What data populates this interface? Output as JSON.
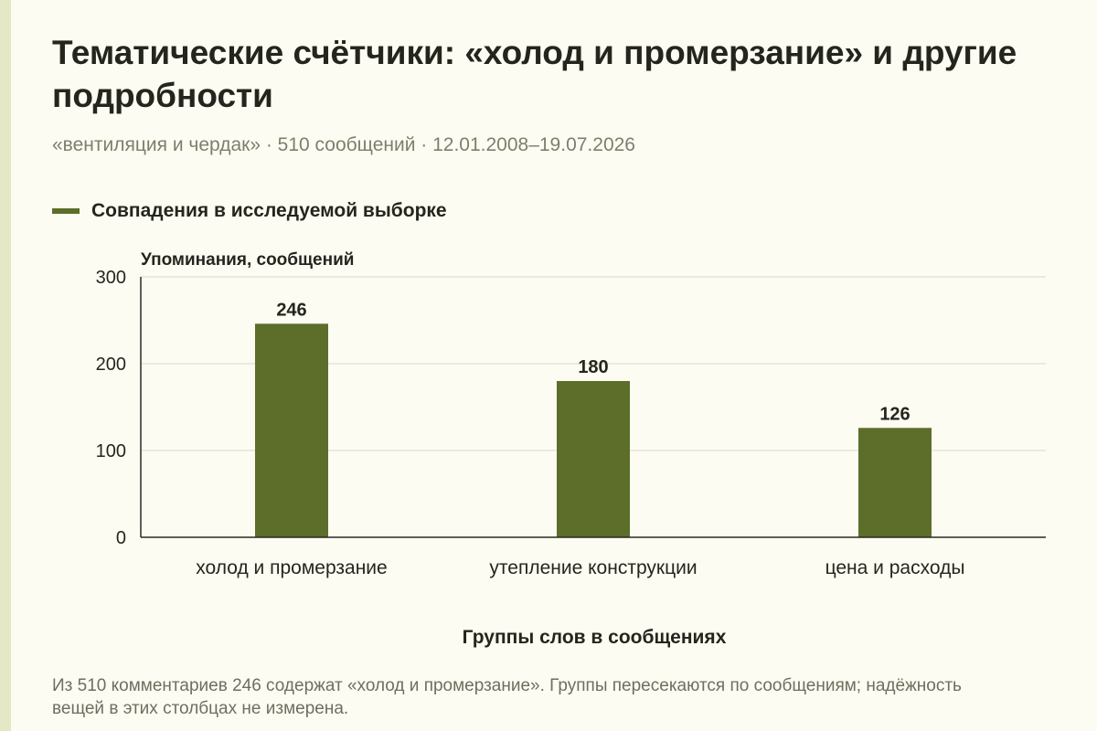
{
  "header": {
    "title": "Тематические счётчики: «холод и промерзание» и другие подробности",
    "subtitle": "«вентиляция и чердак» · 510 сообщений · 12.01.2008–19.07.2026"
  },
  "legend": {
    "label": "Совпадения в исследуемой выборке",
    "color": "#5c6e29"
  },
  "footnote": "Из 510 комментариев 246 содержат «холод и промерзание». Группы пересекаются по сообщениям; надёжность вещей в этих столбцах не измерена.",
  "chart_data": {
    "type": "bar",
    "title": "Тематические счётчики: «холод и промерзание» и другие подробности",
    "xlabel": "Группы слов в сообщениях",
    "ylabel": "Упоминания, сообщений",
    "categories": [
      "холод и промерзание",
      "утепление конструкции",
      "цена и расходы"
    ],
    "series": [
      {
        "name": "Совпадения в исследуемой выборке",
        "values": [
          246,
          180,
          126
        ]
      }
    ],
    "ylim": [
      0,
      300
    ],
    "yticks": [
      0,
      100,
      200,
      300
    ],
    "grid": true,
    "legend_position": "top-left",
    "bar_color": "#5c6e29"
  }
}
